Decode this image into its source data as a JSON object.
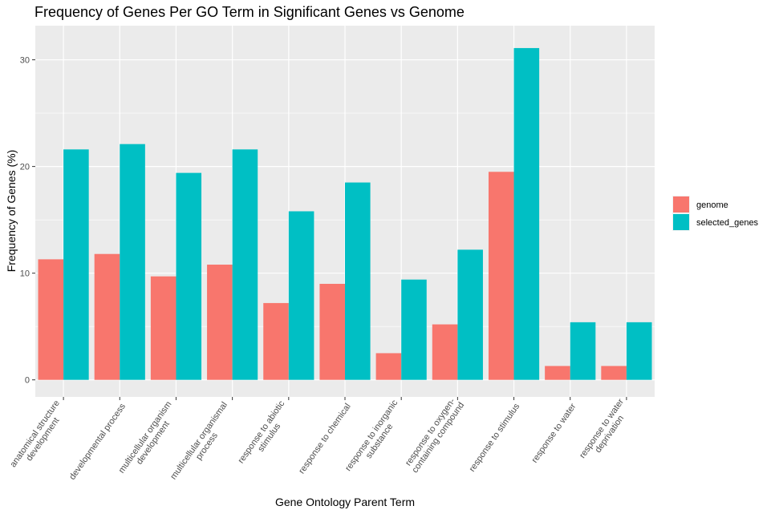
{
  "chart_data": {
    "type": "bar",
    "title": "Frequency of Genes Per GO Term in Significant Genes vs Genome",
    "xlabel": "Gene Ontology Parent Term",
    "ylabel": "Frequency of Genes (%)",
    "ylim": [
      -1.6,
      33.2
    ],
    "yticks": [
      0,
      10,
      20,
      30
    ],
    "grid": true,
    "legend_position": "right",
    "categories": [
      "anatomical structure\ndevelopment",
      "developmental process",
      "multicellular organism\ndevelopment",
      "multicellular organismal\nprocess",
      "response to abiotic\nstimulus",
      "response to chemical",
      "response to inorganic\nsubstance",
      "response to oxygen-\ncontaining compound",
      "response to stimulus",
      "response to water",
      "response to water\ndeprivation"
    ],
    "series": [
      {
        "name": "genome",
        "color": "#F8766D",
        "values": [
          11.3,
          11.8,
          9.7,
          10.8,
          7.2,
          9.0,
          2.5,
          5.2,
          19.5,
          1.3,
          1.3
        ]
      },
      {
        "name": "selected_genes",
        "color": "#00BFC4",
        "values": [
          21.6,
          22.1,
          19.4,
          21.6,
          15.8,
          18.5,
          9.4,
          12.2,
          31.1,
          5.4,
          5.4
        ]
      }
    ],
    "panel_color": "#EBEBEB"
  }
}
